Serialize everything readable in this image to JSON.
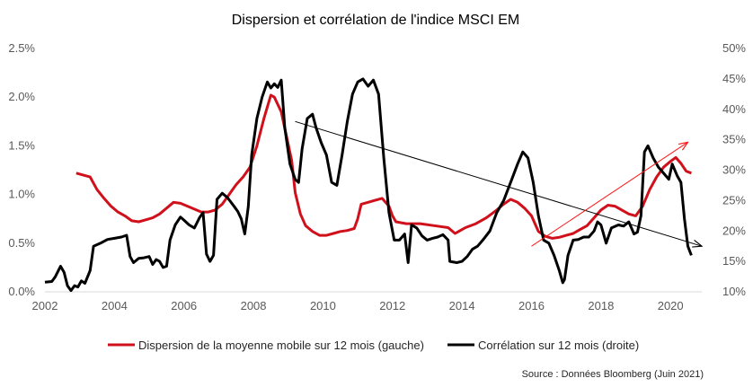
{
  "chart_data": {
    "type": "line",
    "title": "Dispersion et corrélation de l'indice MSCI EM",
    "source": "Source : Données Bloomberg (Juin 2021)",
    "x_ticks": [
      "2002",
      "2004",
      "2006",
      "2008",
      "2010",
      "2012",
      "2014",
      "2016",
      "2018",
      "2020"
    ],
    "y_left": {
      "ticks": [
        "0.0%",
        "0.5%",
        "1.0%",
        "1.5%",
        "2.0%",
        "2.5%"
      ],
      "min": 0,
      "max": 2.5,
      "unit": "%"
    },
    "y_right": {
      "ticks": [
        "10%",
        "15%",
        "20%",
        "25%",
        "30%",
        "35%",
        "40%",
        "45%",
        "50%"
      ],
      "min": 10,
      "max": 50,
      "unit": "%"
    },
    "grid": false,
    "legend": "bottom",
    "series": [
      {
        "name": "Dispersion de la moyenne mobile sur 12 mois (gauche)",
        "axis": "left",
        "color": "#d0101b",
        "points": [
          [
            2002.9,
            1.22
          ],
          [
            2003.1,
            1.2
          ],
          [
            2003.3,
            1.18
          ],
          [
            2003.5,
            1.05
          ],
          [
            2003.7,
            0.96
          ],
          [
            2003.9,
            0.88
          ],
          [
            2004.1,
            0.82
          ],
          [
            2004.3,
            0.78
          ],
          [
            2004.5,
            0.73
          ],
          [
            2004.7,
            0.72
          ],
          [
            2004.9,
            0.74
          ],
          [
            2005.1,
            0.76
          ],
          [
            2005.3,
            0.8
          ],
          [
            2005.5,
            0.86
          ],
          [
            2005.7,
            0.92
          ],
          [
            2005.9,
            0.91
          ],
          [
            2006.1,
            0.88
          ],
          [
            2006.3,
            0.85
          ],
          [
            2006.5,
            0.82
          ],
          [
            2006.7,
            0.82
          ],
          [
            2006.9,
            0.84
          ],
          [
            2007.1,
            0.9
          ],
          [
            2007.3,
            1.0
          ],
          [
            2007.5,
            1.1
          ],
          [
            2007.7,
            1.18
          ],
          [
            2007.9,
            1.28
          ],
          [
            2008.1,
            1.5
          ],
          [
            2008.3,
            1.78
          ],
          [
            2008.5,
            2.02
          ],
          [
            2008.6,
            2.0
          ],
          [
            2008.8,
            1.85
          ],
          [
            2008.95,
            1.6
          ],
          [
            2009.1,
            1.35
          ],
          [
            2009.2,
            1.02
          ],
          [
            2009.35,
            0.8
          ],
          [
            2009.5,
            0.68
          ],
          [
            2009.7,
            0.62
          ],
          [
            2009.9,
            0.58
          ],
          [
            2010.1,
            0.58
          ],
          [
            2010.3,
            0.6
          ],
          [
            2010.5,
            0.62
          ],
          [
            2010.7,
            0.63
          ],
          [
            2010.9,
            0.65
          ],
          [
            2011.0,
            0.75
          ],
          [
            2011.1,
            0.9
          ],
          [
            2011.3,
            0.92
          ],
          [
            2011.5,
            0.94
          ],
          [
            2011.7,
            0.96
          ],
          [
            2011.9,
            0.88
          ],
          [
            2012.0,
            0.78
          ],
          [
            2012.1,
            0.72
          ],
          [
            2012.4,
            0.7
          ],
          [
            2012.8,
            0.7
          ],
          [
            2013.2,
            0.68
          ],
          [
            2013.6,
            0.66
          ],
          [
            2013.8,
            0.6
          ],
          [
            2014.1,
            0.66
          ],
          [
            2014.4,
            0.7
          ],
          [
            2014.7,
            0.76
          ],
          [
            2015.0,
            0.84
          ],
          [
            2015.2,
            0.9
          ],
          [
            2015.4,
            0.95
          ],
          [
            2015.6,
            0.92
          ],
          [
            2015.8,
            0.86
          ],
          [
            2016.0,
            0.78
          ],
          [
            2016.2,
            0.62
          ],
          [
            2016.4,
            0.57
          ],
          [
            2016.6,
            0.55
          ],
          [
            2016.8,
            0.56
          ],
          [
            2017.0,
            0.58
          ],
          [
            2017.2,
            0.6
          ],
          [
            2017.4,
            0.64
          ],
          [
            2017.6,
            0.68
          ],
          [
            2017.8,
            0.76
          ],
          [
            2018.0,
            0.84
          ],
          [
            2018.2,
            0.89
          ],
          [
            2018.4,
            0.88
          ],
          [
            2018.6,
            0.84
          ],
          [
            2018.8,
            0.8
          ],
          [
            2019.0,
            0.78
          ],
          [
            2019.2,
            0.88
          ],
          [
            2019.4,
            1.05
          ],
          [
            2019.6,
            1.18
          ],
          [
            2019.8,
            1.28
          ],
          [
            2020.0,
            1.34
          ],
          [
            2020.15,
            1.38
          ],
          [
            2020.3,
            1.32
          ],
          [
            2020.45,
            1.24
          ],
          [
            2020.6,
            1.22
          ]
        ]
      },
      {
        "name": "Corrélation sur 12 mois (droite)",
        "axis": "right",
        "color": "#000000",
        "points": [
          [
            2002.0,
            11.6
          ],
          [
            2002.2,
            11.7
          ],
          [
            2002.3,
            12.5
          ],
          [
            2002.45,
            14.2
          ],
          [
            2002.55,
            13.2
          ],
          [
            2002.65,
            11.0
          ],
          [
            2002.75,
            10.2
          ],
          [
            2002.85,
            11.0
          ],
          [
            2002.95,
            10.8
          ],
          [
            2003.05,
            11.8
          ],
          [
            2003.15,
            11.4
          ],
          [
            2003.3,
            13.5
          ],
          [
            2003.4,
            17.5
          ],
          [
            2003.6,
            18.0
          ],
          [
            2003.8,
            18.6
          ],
          [
            2004.0,
            18.8
          ],
          [
            2004.2,
            19.0
          ],
          [
            2004.35,
            19.3
          ],
          [
            2004.45,
            15.8
          ],
          [
            2004.55,
            14.8
          ],
          [
            2004.7,
            15.5
          ],
          [
            2004.85,
            15.6
          ],
          [
            2005.0,
            15.8
          ],
          [
            2005.1,
            14.5
          ],
          [
            2005.2,
            15.3
          ],
          [
            2005.3,
            15.0
          ],
          [
            2005.4,
            14.0
          ],
          [
            2005.5,
            14.2
          ],
          [
            2005.6,
            18.5
          ],
          [
            2005.75,
            21.0
          ],
          [
            2005.9,
            22.3
          ],
          [
            2006.0,
            21.8
          ],
          [
            2006.15,
            21.0
          ],
          [
            2006.3,
            20.5
          ],
          [
            2006.45,
            22.2
          ],
          [
            2006.55,
            23.0
          ],
          [
            2006.65,
            16.2
          ],
          [
            2006.75,
            15.0
          ],
          [
            2006.85,
            16.0
          ],
          [
            2006.95,
            25.2
          ],
          [
            2007.1,
            26.2
          ],
          [
            2007.25,
            25.5
          ],
          [
            2007.45,
            24.0
          ],
          [
            2007.55,
            23.2
          ],
          [
            2007.65,
            22.0
          ],
          [
            2007.75,
            19.5
          ],
          [
            2007.85,
            24.0
          ],
          [
            2007.95,
            32.5
          ],
          [
            2008.1,
            38.5
          ],
          [
            2008.25,
            42.0
          ],
          [
            2008.4,
            44.5
          ],
          [
            2008.5,
            43.5
          ],
          [
            2008.6,
            44.2
          ],
          [
            2008.7,
            43.6
          ],
          [
            2008.8,
            44.8
          ],
          [
            2008.9,
            37.0
          ],
          [
            2009.05,
            31.0
          ],
          [
            2009.2,
            28.5
          ],
          [
            2009.3,
            28.0
          ],
          [
            2009.4,
            33.5
          ],
          [
            2009.55,
            38.5
          ],
          [
            2009.7,
            39.2
          ],
          [
            2009.8,
            37.0
          ],
          [
            2009.95,
            34.5
          ],
          [
            2010.1,
            32.5
          ],
          [
            2010.25,
            28.0
          ],
          [
            2010.4,
            27.5
          ],
          [
            2010.55,
            32.5
          ],
          [
            2010.7,
            38.0
          ],
          [
            2010.85,
            42.5
          ],
          [
            2011.0,
            44.5
          ],
          [
            2011.15,
            45.0
          ],
          [
            2011.3,
            43.8
          ],
          [
            2011.45,
            44.8
          ],
          [
            2011.6,
            42.5
          ],
          [
            2011.75,
            32.0
          ],
          [
            2011.9,
            23.0
          ],
          [
            2012.05,
            18.5
          ],
          [
            2012.2,
            18.5
          ],
          [
            2012.35,
            19.5
          ],
          [
            2012.45,
            14.8
          ],
          [
            2012.55,
            21.0
          ],
          [
            2012.7,
            20.5
          ],
          [
            2012.85,
            19.2
          ],
          [
            2013.0,
            18.5
          ],
          [
            2013.15,
            18.8
          ],
          [
            2013.3,
            19.0
          ],
          [
            2013.45,
            19.4
          ],
          [
            2013.6,
            18.5
          ],
          [
            2013.65,
            15.0
          ],
          [
            2013.85,
            14.8
          ],
          [
            2014.0,
            15.0
          ],
          [
            2014.15,
            15.8
          ],
          [
            2014.3,
            17.0
          ],
          [
            2014.45,
            17.5
          ],
          [
            2014.6,
            18.5
          ],
          [
            2014.8,
            20.0
          ],
          [
            2015.0,
            23.0
          ],
          [
            2015.2,
            25.0
          ],
          [
            2015.4,
            28.0
          ],
          [
            2015.6,
            31.0
          ],
          [
            2015.75,
            33.0
          ],
          [
            2015.9,
            32.0
          ],
          [
            2016.05,
            28.0
          ],
          [
            2016.2,
            22.5
          ],
          [
            2016.35,
            18.5
          ],
          [
            2016.5,
            18.0
          ],
          [
            2016.65,
            16.0
          ],
          [
            2016.8,
            13.5
          ],
          [
            2016.9,
            11.5
          ],
          [
            2016.95,
            12.0
          ],
          [
            2017.05,
            16.0
          ],
          [
            2017.2,
            18.5
          ],
          [
            2017.35,
            18.6
          ],
          [
            2017.5,
            19.0
          ],
          [
            2017.65,
            19.0
          ],
          [
            2017.8,
            20.0
          ],
          [
            2017.9,
            21.5
          ],
          [
            2018.0,
            21.0
          ],
          [
            2018.15,
            18.0
          ],
          [
            2018.3,
            20.5
          ],
          [
            2018.5,
            21.0
          ],
          [
            2018.65,
            20.8
          ],
          [
            2018.8,
            21.5
          ],
          [
            2018.95,
            19.5
          ],
          [
            2019.05,
            19.8
          ],
          [
            2019.15,
            22.5
          ],
          [
            2019.25,
            33.0
          ],
          [
            2019.35,
            34.0
          ],
          [
            2019.5,
            32.0
          ],
          [
            2019.65,
            30.5
          ],
          [
            2019.8,
            29.5
          ],
          [
            2019.95,
            28.5
          ],
          [
            2020.05,
            31.0
          ],
          [
            2020.2,
            29.0
          ],
          [
            2020.3,
            28.0
          ],
          [
            2020.4,
            22.0
          ],
          [
            2020.5,
            17.5
          ],
          [
            2020.6,
            16.0
          ]
        ]
      }
    ]
  },
  "annotations": {
    "black_trend_arrow": {
      "color": "#000000",
      "from": [
        2009.2,
        38.0
      ],
      "to": [
        2020.9,
        17.5
      ]
    },
    "red_trend_arrow": {
      "color": "#ff1a1a",
      "from": [
        2016.0,
        17.5
      ],
      "to": [
        2020.5,
        34.6
      ]
    }
  }
}
